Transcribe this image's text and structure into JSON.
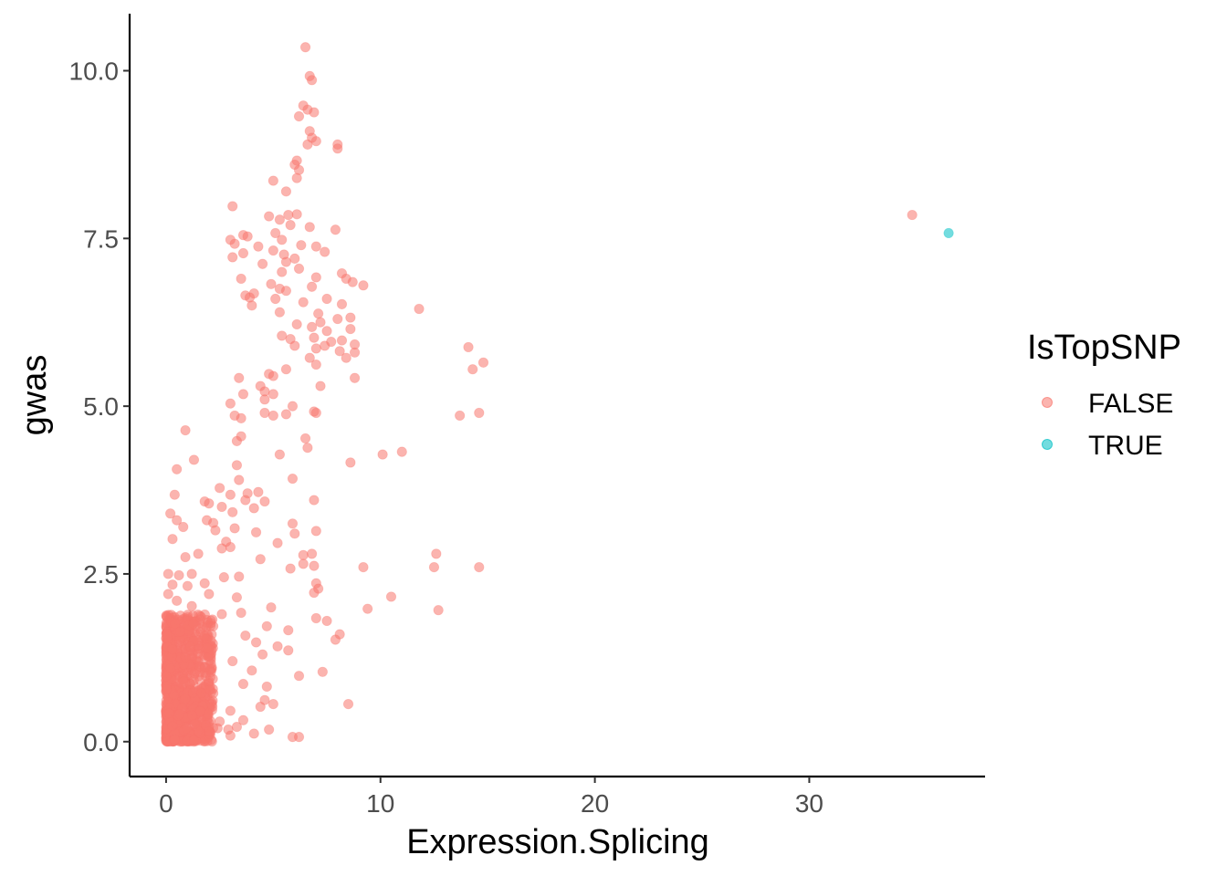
{
  "chart_data": {
    "type": "scatter",
    "xlabel": "Expression.Splicing",
    "ylabel": "gwas",
    "xlim": [
      -1.7,
      38.2
    ],
    "ylim": [
      -0.52,
      10.85
    ],
    "x_ticks": [
      0,
      10,
      20,
      30
    ],
    "x_tick_labels": [
      "0",
      "10",
      "20",
      "30"
    ],
    "y_ticks": [
      0,
      2.5,
      5,
      7.5,
      10
    ],
    "y_tick_labels": [
      "0.0",
      "2.5",
      "5.0",
      "7.5",
      "10.0"
    ],
    "grid": false,
    "point_alpha": 0.55,
    "legend": {
      "title": "IsTopSNP",
      "placement": "right",
      "entries": [
        {
          "label": "FALSE",
          "color": "#F8766D"
        },
        {
          "label": "TRUE",
          "color": "#00BFC4"
        }
      ]
    },
    "series": [
      {
        "name": "FALSE",
        "color": "#F8766D",
        "points": [
          [
            6.5,
            10.35
          ],
          [
            6.7,
            9.92
          ],
          [
            6.8,
            9.86
          ],
          [
            6.4,
            9.48
          ],
          [
            6.6,
            9.42
          ],
          [
            6.2,
            9.32
          ],
          [
            6.9,
            9.38
          ],
          [
            6.7,
            9.1
          ],
          [
            6.8,
            9.0
          ],
          [
            7.0,
            8.95
          ],
          [
            6.6,
            8.9
          ],
          [
            8.0,
            8.9
          ],
          [
            8.0,
            8.84
          ],
          [
            6.1,
            8.66
          ],
          [
            6.0,
            8.6
          ],
          [
            6.2,
            8.52
          ],
          [
            6.1,
            8.4
          ],
          [
            5.0,
            8.36
          ],
          [
            5.6,
            8.2
          ],
          [
            3.1,
            7.98
          ],
          [
            5.7,
            7.85
          ],
          [
            6.1,
            7.86
          ],
          [
            4.8,
            7.83
          ],
          [
            5.3,
            7.78
          ],
          [
            5.8,
            7.7
          ],
          [
            6.7,
            7.67
          ],
          [
            7.9,
            7.63
          ],
          [
            5.1,
            7.58
          ],
          [
            3.6,
            7.55
          ],
          [
            3.8,
            7.53
          ],
          [
            3.0,
            7.48
          ],
          [
            5.4,
            7.48
          ],
          [
            3.2,
            7.42
          ],
          [
            4.3,
            7.38
          ],
          [
            6.3,
            7.4
          ],
          [
            7.0,
            7.38
          ],
          [
            7.4,
            7.3
          ],
          [
            5.0,
            7.32
          ],
          [
            5.5,
            7.26
          ],
          [
            3.1,
            7.22
          ],
          [
            3.6,
            7.28
          ],
          [
            6.0,
            7.2
          ],
          [
            5.6,
            7.15
          ],
          [
            4.5,
            7.12
          ],
          [
            6.2,
            7.05
          ],
          [
            5.4,
            7.0
          ],
          [
            8.2,
            6.98
          ],
          [
            8.4,
            6.9
          ],
          [
            7.0,
            6.92
          ],
          [
            6.8,
            6.78
          ],
          [
            8.7,
            6.85
          ],
          [
            9.2,
            6.8
          ],
          [
            3.5,
            6.9
          ],
          [
            4.9,
            6.82
          ],
          [
            5.3,
            6.75
          ],
          [
            5.6,
            6.72
          ],
          [
            3.7,
            6.65
          ],
          [
            4.1,
            6.68
          ],
          [
            3.9,
            6.62
          ],
          [
            5.1,
            6.6
          ],
          [
            6.4,
            6.55
          ],
          [
            7.5,
            6.6
          ],
          [
            8.2,
            6.52
          ],
          [
            4.0,
            6.5
          ],
          [
            11.8,
            6.45
          ],
          [
            5.3,
            6.4
          ],
          [
            7.1,
            6.38
          ],
          [
            8.0,
            6.3
          ],
          [
            8.6,
            6.32
          ],
          [
            6.1,
            6.22
          ],
          [
            7.2,
            6.25
          ],
          [
            6.8,
            6.18
          ],
          [
            7.5,
            6.12
          ],
          [
            8.6,
            6.15
          ],
          [
            5.4,
            6.05
          ],
          [
            5.8,
            6.0
          ],
          [
            6.9,
            6.02
          ],
          [
            7.7,
            5.96
          ],
          [
            8.2,
            5.98
          ],
          [
            8.8,
            5.92
          ],
          [
            6.0,
            5.9
          ],
          [
            7.0,
            5.86
          ],
          [
            7.4,
            5.9
          ],
          [
            8.1,
            5.82
          ],
          [
            8.8,
            5.8
          ],
          [
            14.1,
            5.88
          ],
          [
            8.4,
            5.72
          ],
          [
            6.7,
            5.72
          ],
          [
            7.0,
            5.62
          ],
          [
            14.8,
            5.65
          ],
          [
            5.6,
            5.55
          ],
          [
            14.3,
            5.55
          ],
          [
            4.8,
            5.48
          ],
          [
            5.0,
            5.45
          ],
          [
            3.4,
            5.42
          ],
          [
            4.4,
            5.3
          ],
          [
            7.2,
            5.3
          ],
          [
            8.8,
            5.42
          ],
          [
            4.6,
            5.22
          ],
          [
            5.0,
            5.18
          ],
          [
            3.6,
            5.18
          ],
          [
            4.6,
            5.1
          ],
          [
            3.0,
            5.04
          ],
          [
            5.9,
            5.0
          ],
          [
            6.9,
            4.92
          ],
          [
            7.0,
            4.9
          ],
          [
            3.2,
            4.86
          ],
          [
            3.5,
            4.82
          ],
          [
            4.6,
            4.9
          ],
          [
            5.0,
            4.86
          ],
          [
            5.6,
            4.88
          ],
          [
            13.7,
            4.86
          ],
          [
            14.6,
            4.9
          ],
          [
            3.5,
            4.55
          ],
          [
            6.5,
            4.52
          ],
          [
            3.3,
            4.48
          ],
          [
            6.6,
            4.38
          ],
          [
            5.3,
            4.28
          ],
          [
            10.1,
            4.28
          ],
          [
            11.0,
            4.32
          ],
          [
            8.6,
            4.16
          ],
          [
            3.3,
            4.12
          ],
          [
            0.5,
            4.06
          ],
          [
            1.3,
            4.2
          ],
          [
            0.9,
            4.64
          ],
          [
            3.4,
            3.9
          ],
          [
            5.9,
            3.92
          ],
          [
            0.4,
            3.68
          ],
          [
            2.5,
            3.78
          ],
          [
            3.0,
            3.68
          ],
          [
            3.8,
            3.7
          ],
          [
            4.3,
            3.72
          ],
          [
            1.8,
            3.58
          ],
          [
            2.0,
            3.55
          ],
          [
            3.7,
            3.6
          ],
          [
            4.6,
            3.58
          ],
          [
            6.9,
            3.6
          ],
          [
            2.6,
            3.5
          ],
          [
            3.1,
            3.42
          ],
          [
            4.1,
            3.48
          ],
          [
            0.2,
            3.4
          ],
          [
            0.5,
            3.3
          ],
          [
            1.9,
            3.3
          ],
          [
            2.2,
            3.26
          ],
          [
            2.3,
            3.15
          ],
          [
            0.8,
            3.2
          ],
          [
            5.9,
            3.25
          ],
          [
            3.2,
            3.18
          ],
          [
            4.2,
            3.12
          ],
          [
            6.0,
            3.1
          ],
          [
            0.3,
            3.02
          ],
          [
            7.0,
            3.14
          ],
          [
            2.8,
            2.98
          ],
          [
            2.6,
            2.88
          ],
          [
            5.2,
            2.96
          ],
          [
            6.4,
            2.78
          ],
          [
            6.8,
            2.8
          ],
          [
            1.5,
            2.8
          ],
          [
            0.9,
            2.75
          ],
          [
            3.0,
            2.9
          ],
          [
            4.4,
            2.72
          ],
          [
            5.8,
            2.58
          ],
          [
            6.4,
            2.65
          ],
          [
            6.9,
            2.62
          ],
          [
            9.2,
            2.6
          ],
          [
            12.5,
            2.6
          ],
          [
            12.6,
            2.8
          ],
          [
            14.6,
            2.6
          ],
          [
            0.1,
            2.5
          ],
          [
            0.6,
            2.48
          ],
          [
            1.2,
            2.5
          ],
          [
            1.8,
            2.36
          ],
          [
            2.7,
            2.45
          ],
          [
            3.4,
            2.46
          ],
          [
            7.0,
            2.36
          ],
          [
            7.1,
            2.28
          ],
          [
            0.3,
            2.34
          ],
          [
            1.0,
            2.32
          ],
          [
            2.0,
            2.2
          ],
          [
            3.3,
            2.15
          ],
          [
            6.9,
            2.22
          ],
          [
            10.5,
            2.16
          ],
          [
            0.1,
            2.2
          ],
          [
            0.5,
            2.1
          ],
          [
            1.2,
            2.02
          ],
          [
            4.9,
            2.0
          ],
          [
            9.4,
            1.98
          ],
          [
            12.7,
            1.96
          ],
          [
            3.5,
            1.92
          ],
          [
            7.0,
            1.84
          ],
          [
            2.6,
            1.9
          ],
          [
            7.5,
            1.8
          ],
          [
            2.2,
            1.72
          ],
          [
            4.7,
            1.72
          ],
          [
            5.7,
            1.66
          ],
          [
            8.1,
            1.6
          ],
          [
            3.7,
            1.58
          ],
          [
            7.9,
            1.52
          ],
          [
            4.2,
            1.48
          ],
          [
            5.2,
            1.42
          ],
          [
            1.9,
            1.4
          ],
          [
            4.5,
            1.3
          ],
          [
            5.7,
            1.36
          ],
          [
            3.1,
            1.2
          ],
          [
            4.0,
            1.06
          ],
          [
            6.2,
            0.98
          ],
          [
            7.3,
            1.04
          ],
          [
            3.6,
            0.86
          ],
          [
            4.7,
            0.82
          ],
          [
            4.6,
            0.62
          ],
          [
            3.0,
            0.46
          ],
          [
            4.4,
            0.52
          ],
          [
            5.0,
            0.56
          ],
          [
            8.5,
            0.56
          ],
          [
            3.6,
            0.32
          ],
          [
            3.3,
            0.22
          ],
          [
            4.1,
            0.12
          ],
          [
            4.8,
            0.18
          ],
          [
            5.9,
            0.07
          ],
          [
            6.2,
            0.07
          ],
          [
            2.2,
            0.72
          ],
          [
            2.0,
            0.9
          ],
          [
            1.8,
            1.1
          ],
          [
            2.5,
            0.3
          ],
          [
            2.9,
            0.18
          ],
          [
            3.0,
            0.09
          ],
          [
            2.4,
            0.2
          ],
          [
            2.0,
            0.15
          ],
          [
            1.6,
            0.45
          ]
        ]
      },
      {
        "name": "TRUE",
        "color": "#00BFC4",
        "points": [
          [
            36.5,
            7.58
          ]
        ]
      },
      {
        "name": "FALSE",
        "color": "#F8766D",
        "points": [
          [
            34.8,
            7.85
          ]
        ]
      }
    ],
    "dense_cluster": {
      "description_free": true,
      "x_range": [
        0,
        2.2
      ],
      "y_range": [
        0,
        1.9
      ],
      "count": 900,
      "color": "#F8766D"
    }
  }
}
